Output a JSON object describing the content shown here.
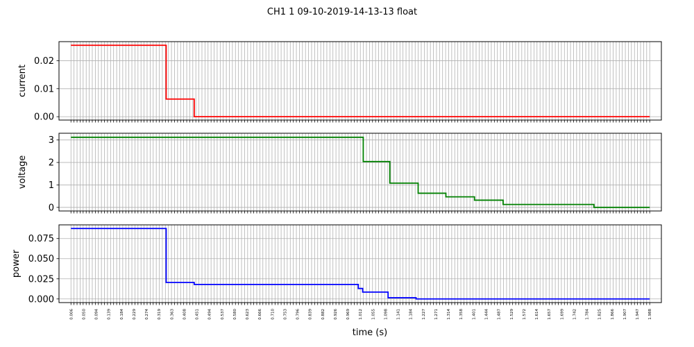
{
  "figure": {
    "suptitle": "CH1   1   09-10-2019-14-13-13   float",
    "xlabel": "time (s)"
  },
  "chart_data": [
    {
      "type": "line",
      "ylabel": "current",
      "color": "#ff0000",
      "grid": true,
      "xlim": [
        -0.035,
        2.028
      ],
      "ylim": [
        -0.0012,
        0.0268
      ],
      "yticks": [
        0.0,
        0.01,
        0.02
      ],
      "ytick_labels": [
        "0.00",
        "0.01",
        "0.02"
      ],
      "steps": [
        {
          "x0": 0.006,
          "x1": 0.332,
          "y": 0.0255
        },
        {
          "x0": 0.332,
          "x1": 0.428,
          "y": 0.0063
        },
        {
          "x0": 0.428,
          "x1": 1.988,
          "y": 0.0
        }
      ]
    },
    {
      "type": "line",
      "ylabel": "voltage",
      "color": "#008000",
      "grid": true,
      "xlim": [
        -0.035,
        2.028
      ],
      "ylim": [
        -0.16,
        3.3
      ],
      "yticks": [
        0,
        1,
        2,
        3
      ],
      "ytick_labels": [
        "0",
        "1",
        "2",
        "3"
      ],
      "steps": [
        {
          "x0": 0.006,
          "x1": 1.007,
          "y": 3.12
        },
        {
          "x0": 1.007,
          "x1": 1.098,
          "y": 2.04
        },
        {
          "x0": 1.098,
          "x1": 1.195,
          "y": 1.08
        },
        {
          "x0": 1.195,
          "x1": 1.29,
          "y": 0.63
        },
        {
          "x0": 1.29,
          "x1": 1.388,
          "y": 0.47
        },
        {
          "x0": 1.388,
          "x1": 1.486,
          "y": 0.32
        },
        {
          "x0": 1.486,
          "x1": 1.797,
          "y": 0.13
        },
        {
          "x0": 1.797,
          "x1": 1.988,
          "y": 0.0
        }
      ]
    },
    {
      "type": "line",
      "ylabel": "power",
      "color": "#0000ff",
      "grid": true,
      "xlim": [
        -0.035,
        2.028
      ],
      "ylim": [
        -0.0045,
        0.092
      ],
      "yticks": [
        0.0,
        0.025,
        0.05,
        0.075
      ],
      "ytick_labels": [
        "0.000",
        "0.025",
        "0.050",
        "0.075"
      ],
      "steps": [
        {
          "x0": 0.006,
          "x1": 0.332,
          "y": 0.0875
        },
        {
          "x0": 0.332,
          "x1": 0.428,
          "y": 0.0205
        },
        {
          "x0": 0.428,
          "x1": 0.99,
          "y": 0.018
        },
        {
          "x0": 0.99,
          "x1": 1.005,
          "y": 0.013
        },
        {
          "x0": 1.005,
          "x1": 1.092,
          "y": 0.0085
        },
        {
          "x0": 1.092,
          "x1": 1.188,
          "y": 0.0015
        },
        {
          "x0": 1.188,
          "x1": 1.988,
          "y": 0.0
        }
      ]
    }
  ],
  "shared_x": {
    "grid_count": 191,
    "x_start": 0.006,
    "x_end": 1.988,
    "label_values": [
      "0.006",
      "0.050",
      "0.094",
      "0.139",
      "0.184",
      "0.229",
      "0.274",
      "0.319",
      "0.363",
      "0.408",
      "0.451",
      "0.494",
      "0.537",
      "0.580",
      "0.623",
      "0.666",
      "0.710",
      "0.753",
      "0.796",
      "0.839",
      "0.882",
      "0.926",
      "0.969",
      "1.012",
      "1.055",
      "1.098",
      "1.141",
      "1.184",
      "1.227",
      "1.271",
      "1.314",
      "1.358",
      "1.401",
      "1.444",
      "1.487",
      "1.529",
      "1.572",
      "1.614",
      "1.657",
      "1.699",
      "1.742",
      "1.784",
      "1.825",
      "1.866",
      "1.907",
      "1.947",
      "1.988"
    ]
  }
}
